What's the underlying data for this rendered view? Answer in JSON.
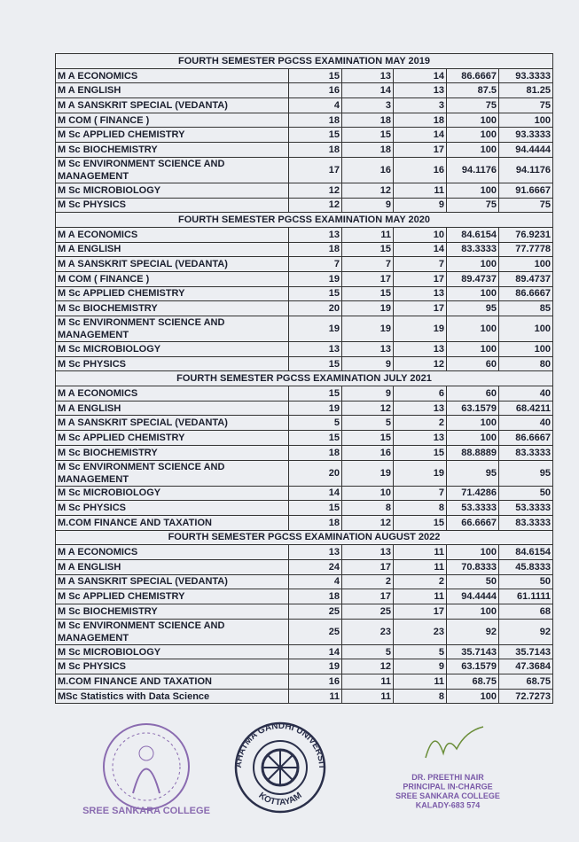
{
  "sections": [
    {
      "title": "FOURTH SEMESTER PGCSS EXAMINATION MAY 2019",
      "rows": [
        [
          "M A ECONOMICS",
          "15",
          "13",
          "14",
          "86.6667",
          "93.3333"
        ],
        [
          "M A ENGLISH",
          "16",
          "14",
          "13",
          "87.5",
          "81.25"
        ],
        [
          "M A SANSKRIT SPECIAL (VEDANTA)",
          "4",
          "3",
          "3",
          "75",
          "75"
        ],
        [
          "M COM ( FINANCE )",
          "18",
          "18",
          "18",
          "100",
          "100"
        ],
        [
          "M Sc APPLIED CHEMISTRY",
          "15",
          "15",
          "14",
          "100",
          "93.3333"
        ],
        [
          "M Sc BIOCHEMISTRY",
          "18",
          "18",
          "17",
          "100",
          "94.4444"
        ],
        [
          "M Sc ENVIRONMENT SCIENCE AND MANAGEMENT",
          "17",
          "16",
          "16",
          "94.1176",
          "94.1176"
        ],
        [
          "M Sc MICROBIOLOGY",
          "12",
          "12",
          "11",
          "100",
          "91.6667"
        ],
        [
          "M Sc PHYSICS",
          "12",
          "9",
          "9",
          "75",
          "75"
        ]
      ]
    },
    {
      "title": "FOURTH SEMESTER PGCSS EXAMINATION MAY 2020",
      "rows": [
        [
          "M A ECONOMICS",
          "13",
          "11",
          "10",
          "84.6154",
          "76.9231"
        ],
        [
          "M A ENGLISH",
          "18",
          "15",
          "14",
          "83.3333",
          "77.7778"
        ],
        [
          "M A SANSKRIT SPECIAL (VEDANTA)",
          "7",
          "7",
          "7",
          "100",
          "100"
        ],
        [
          "M COM ( FINANCE )",
          "19",
          "17",
          "17",
          "89.4737",
          "89.4737"
        ],
        [
          "M Sc APPLIED CHEMISTRY",
          "15",
          "15",
          "13",
          "100",
          "86.6667"
        ],
        [
          "M Sc BIOCHEMISTRY",
          "20",
          "19",
          "17",
          "95",
          "85"
        ],
        [
          "M Sc ENVIRONMENT SCIENCE AND MANAGEMENT",
          "19",
          "19",
          "19",
          "100",
          "100"
        ],
        [
          "M Sc MICROBIOLOGY",
          "13",
          "13",
          "13",
          "100",
          "100"
        ],
        [
          "M Sc PHYSICS",
          "15",
          "9",
          "12",
          "60",
          "80"
        ]
      ]
    },
    {
      "title": "FOURTH SEMESTER PGCSS EXAMINATION JULY 2021",
      "rows": [
        [
          "M A ECONOMICS",
          "15",
          "9",
          "6",
          "60",
          "40"
        ],
        [
          "M A ENGLISH",
          "19",
          "12",
          "13",
          "63.1579",
          "68.4211"
        ],
        [
          "M A SANSKRIT SPECIAL (VEDANTA)",
          "5",
          "5",
          "2",
          "100",
          "40"
        ],
        [
          "M Sc APPLIED CHEMISTRY",
          "15",
          "15",
          "13",
          "100",
          "86.6667"
        ],
        [
          "M Sc BIOCHEMISTRY",
          "18",
          "16",
          "15",
          "88.8889",
          "83.3333"
        ],
        [
          "M Sc ENVIRONMENT SCIENCE AND MANAGEMENT",
          "20",
          "19",
          "19",
          "95",
          "95"
        ],
        [
          "M Sc MICROBIOLOGY",
          "14",
          "10",
          "7",
          "71.4286",
          "50"
        ],
        [
          "M Sc PHYSICS",
          "15",
          "8",
          "8",
          "53.3333",
          "53.3333"
        ],
        [
          "M.COM FINANCE AND TAXATION",
          "18",
          "12",
          "15",
          "66.6667",
          "83.3333"
        ]
      ]
    },
    {
      "title": "FOURTH SEMESTER PGCSS EXAMINATION AUGUST 2022",
      "rows": [
        [
          "M A ECONOMICS",
          "13",
          "13",
          "11",
          "100",
          "84.6154"
        ],
        [
          "M A ENGLISH",
          "24",
          "17",
          "11",
          "70.8333",
          "45.8333"
        ],
        [
          "M A SANSKRIT SPECIAL (VEDANTA)",
          "4",
          "2",
          "2",
          "50",
          "50"
        ],
        [
          "M Sc APPLIED CHEMISTRY",
          "18",
          "17",
          "11",
          "94.4444",
          "61.1111"
        ],
        [
          "M Sc BIOCHEMISTRY",
          "25",
          "25",
          "17",
          "100",
          "68"
        ],
        [
          "M Sc ENVIRONMENT SCIENCE AND MANAGEMENT",
          "25",
          "23",
          "23",
          "92",
          "92"
        ],
        [
          "M Sc MICROBIOLOGY",
          "14",
          "5",
          "5",
          "35.7143",
          "35.7143"
        ],
        [
          "M Sc PHYSICS",
          "19",
          "12",
          "9",
          "63.1579",
          "47.3684"
        ],
        [
          "M.COM FINANCE AND TAXATION",
          "16",
          "11",
          "11",
          "68.75",
          "68.75"
        ],
        [
          "MSc Statistics with Data Science",
          "11",
          "11",
          "8",
          "100",
          "72.7273"
        ]
      ]
    }
  ],
  "stamps": {
    "college_seal": "SREE SANKARA COLLEGE",
    "university_seal": "MAHATMA GANDHI UNIVERSITY",
    "university_city": "KOTTAYAM",
    "signatory": [
      "DR. PREETHI NAIR",
      "PRINCIPAL IN-CHARGE",
      "SREE SANKARA COLLEGE",
      "KALADY-683 574"
    ]
  }
}
